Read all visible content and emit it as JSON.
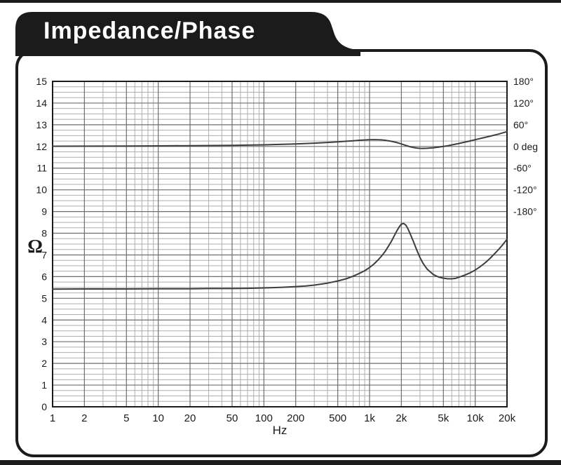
{
  "banner": {
    "title": "Impedance/Phase"
  },
  "chart_data": {
    "type": "line",
    "title": "Impedance/Phase",
    "xlabel": "Hz",
    "ylabel": "Ω",
    "x_scale": "log",
    "x_range": [
      1,
      20000
    ],
    "grid": "on",
    "y_left": {
      "unit": "ohm",
      "min": 0,
      "max": 15,
      "major_step": 1,
      "minor_step": 0.25,
      "ticks": [
        {
          "v": 0,
          "label": "0"
        },
        {
          "v": 1,
          "label": "1"
        },
        {
          "v": 2,
          "label": "2"
        },
        {
          "v": 3,
          "label": "3"
        },
        {
          "v": 4,
          "label": "4"
        },
        {
          "v": 5,
          "label": "5"
        },
        {
          "v": 6,
          "label": "6"
        },
        {
          "v": 7,
          "label": "7"
        },
        {
          "v": 8,
          "label": "8"
        },
        {
          "v": 9,
          "label": "9"
        },
        {
          "v": 10,
          "label": "10"
        },
        {
          "v": 11,
          "label": "11"
        },
        {
          "v": 12,
          "label": "12"
        },
        {
          "v": 13,
          "label": "13"
        },
        {
          "v": 14,
          "label": "14"
        },
        {
          "v": 15,
          "label": "15"
        }
      ]
    },
    "y_right": {
      "unit": "deg",
      "zero_at_left_value": 12,
      "degrees_per_left_unit": 60,
      "ticks": [
        {
          "deg": 180,
          "label": "180°"
        },
        {
          "deg": 120,
          "label": "120°"
        },
        {
          "deg": 60,
          "label": "60°"
        },
        {
          "deg": 0,
          "label": "0 deg"
        },
        {
          "deg": -60,
          "label": "-60°"
        },
        {
          "deg": -120,
          "label": "-120°"
        },
        {
          "deg": -180,
          "label": "-180°"
        }
      ]
    },
    "x_ticks": [
      {
        "f": 1,
        "label": "1"
      },
      {
        "f": 2,
        "label": "2"
      },
      {
        "f": 5,
        "label": "5"
      },
      {
        "f": 10,
        "label": "10"
      },
      {
        "f": 20,
        "label": "20"
      },
      {
        "f": 50,
        "label": "50"
      },
      {
        "f": 100,
        "label": "100"
      },
      {
        "f": 200,
        "label": "200"
      },
      {
        "f": 500,
        "label": "500"
      },
      {
        "f": 1000,
        "label": "1k"
      },
      {
        "f": 2000,
        "label": "2k"
      },
      {
        "f": 5000,
        "label": "5k"
      },
      {
        "f": 10000,
        "label": "10k"
      },
      {
        "f": 20000,
        "label": "20k"
      }
    ],
    "series": [
      {
        "name": "impedance",
        "axis": "left",
        "unit": "ohm",
        "points": [
          [
            1,
            5.42
          ],
          [
            2,
            5.43
          ],
          [
            5,
            5.43
          ],
          [
            10,
            5.44
          ],
          [
            20,
            5.44
          ],
          [
            30,
            5.45
          ],
          [
            50,
            5.45
          ],
          [
            70,
            5.46
          ],
          [
            100,
            5.48
          ],
          [
            150,
            5.51
          ],
          [
            200,
            5.54
          ],
          [
            250,
            5.57
          ],
          [
            300,
            5.61
          ],
          [
            400,
            5.7
          ],
          [
            500,
            5.8
          ],
          [
            600,
            5.9
          ],
          [
            700,
            6.02
          ],
          [
            800,
            6.15
          ],
          [
            900,
            6.27
          ],
          [
            1000,
            6.42
          ],
          [
            1100,
            6.58
          ],
          [
            1200,
            6.76
          ],
          [
            1300,
            6.95
          ],
          [
            1400,
            7.15
          ],
          [
            1500,
            7.38
          ],
          [
            1600,
            7.6
          ],
          [
            1700,
            7.85
          ],
          [
            1800,
            8.08
          ],
          [
            1900,
            8.28
          ],
          [
            2000,
            8.42
          ],
          [
            2100,
            8.45
          ],
          [
            2200,
            8.38
          ],
          [
            2300,
            8.22
          ],
          [
            2400,
            8.02
          ],
          [
            2500,
            7.82
          ],
          [
            2600,
            7.62
          ],
          [
            2800,
            7.22
          ],
          [
            3000,
            6.88
          ],
          [
            3200,
            6.62
          ],
          [
            3500,
            6.35
          ],
          [
            4000,
            6.1
          ],
          [
            4500,
            5.98
          ],
          [
            5000,
            5.93
          ],
          [
            5500,
            5.9
          ],
          [
            6000,
            5.9
          ],
          [
            6500,
            5.92
          ],
          [
            7000,
            5.97
          ],
          [
            8000,
            6.07
          ],
          [
            9000,
            6.18
          ],
          [
            10000,
            6.3
          ],
          [
            11000,
            6.44
          ],
          [
            12000,
            6.58
          ],
          [
            13000,
            6.72
          ],
          [
            14000,
            6.87
          ],
          [
            15000,
            7.02
          ],
          [
            16000,
            7.16
          ],
          [
            17000,
            7.3
          ],
          [
            18000,
            7.44
          ],
          [
            19000,
            7.58
          ],
          [
            20000,
            7.72
          ]
        ]
      },
      {
        "name": "phase",
        "axis": "right",
        "unit": "deg",
        "points": [
          [
            1,
            0.5
          ],
          [
            2,
            0.8
          ],
          [
            5,
            1.2
          ],
          [
            10,
            1.6
          ],
          [
            20,
            2.2
          ],
          [
            50,
            3.2
          ],
          [
            100,
            4.5
          ],
          [
            150,
            5.8
          ],
          [
            200,
            7.0
          ],
          [
            300,
            9.2
          ],
          [
            400,
            11.0
          ],
          [
            500,
            12.8
          ],
          [
            600,
            14.4
          ],
          [
            700,
            15.8
          ],
          [
            800,
            17.0
          ],
          [
            900,
            17.9
          ],
          [
            1000,
            18.5
          ],
          [
            1100,
            18.8
          ],
          [
            1200,
            18.6
          ],
          [
            1300,
            18.0
          ],
          [
            1400,
            17.0
          ],
          [
            1600,
            14.4
          ],
          [
            1800,
            11.0
          ],
          [
            2000,
            7.0
          ],
          [
            2200,
            3.0
          ],
          [
            2400,
            -0.5
          ],
          [
            2600,
            -3.0
          ],
          [
            2800,
            -4.5
          ],
          [
            3000,
            -5.3
          ],
          [
            3200,
            -5.5
          ],
          [
            3500,
            -5.1
          ],
          [
            4000,
            -3.8
          ],
          [
            4500,
            -2.0
          ],
          [
            5000,
            0.0
          ],
          [
            5500,
            2.0
          ],
          [
            6000,
            4.2
          ],
          [
            7000,
            8.2
          ],
          [
            8000,
            12.0
          ],
          [
            9000,
            15.4
          ],
          [
            10000,
            18.6
          ],
          [
            11000,
            21.5
          ],
          [
            12000,
            24.0
          ],
          [
            13000,
            26.5
          ],
          [
            14000,
            28.8
          ],
          [
            15000,
            31.0
          ],
          [
            16000,
            33.0
          ],
          [
            17000,
            35.0
          ],
          [
            18000,
            37.0
          ],
          [
            19000,
            39.0
          ],
          [
            20000,
            41.0
          ]
        ]
      }
    ],
    "colors": {
      "curve": "#3d3d3d",
      "grid_major": "#6e6e6e",
      "grid_minor": "#aeaeae",
      "axis_border": "#1c1c1c",
      "banner": "#1b1b1b",
      "label_text": "#1b1b1b"
    }
  }
}
